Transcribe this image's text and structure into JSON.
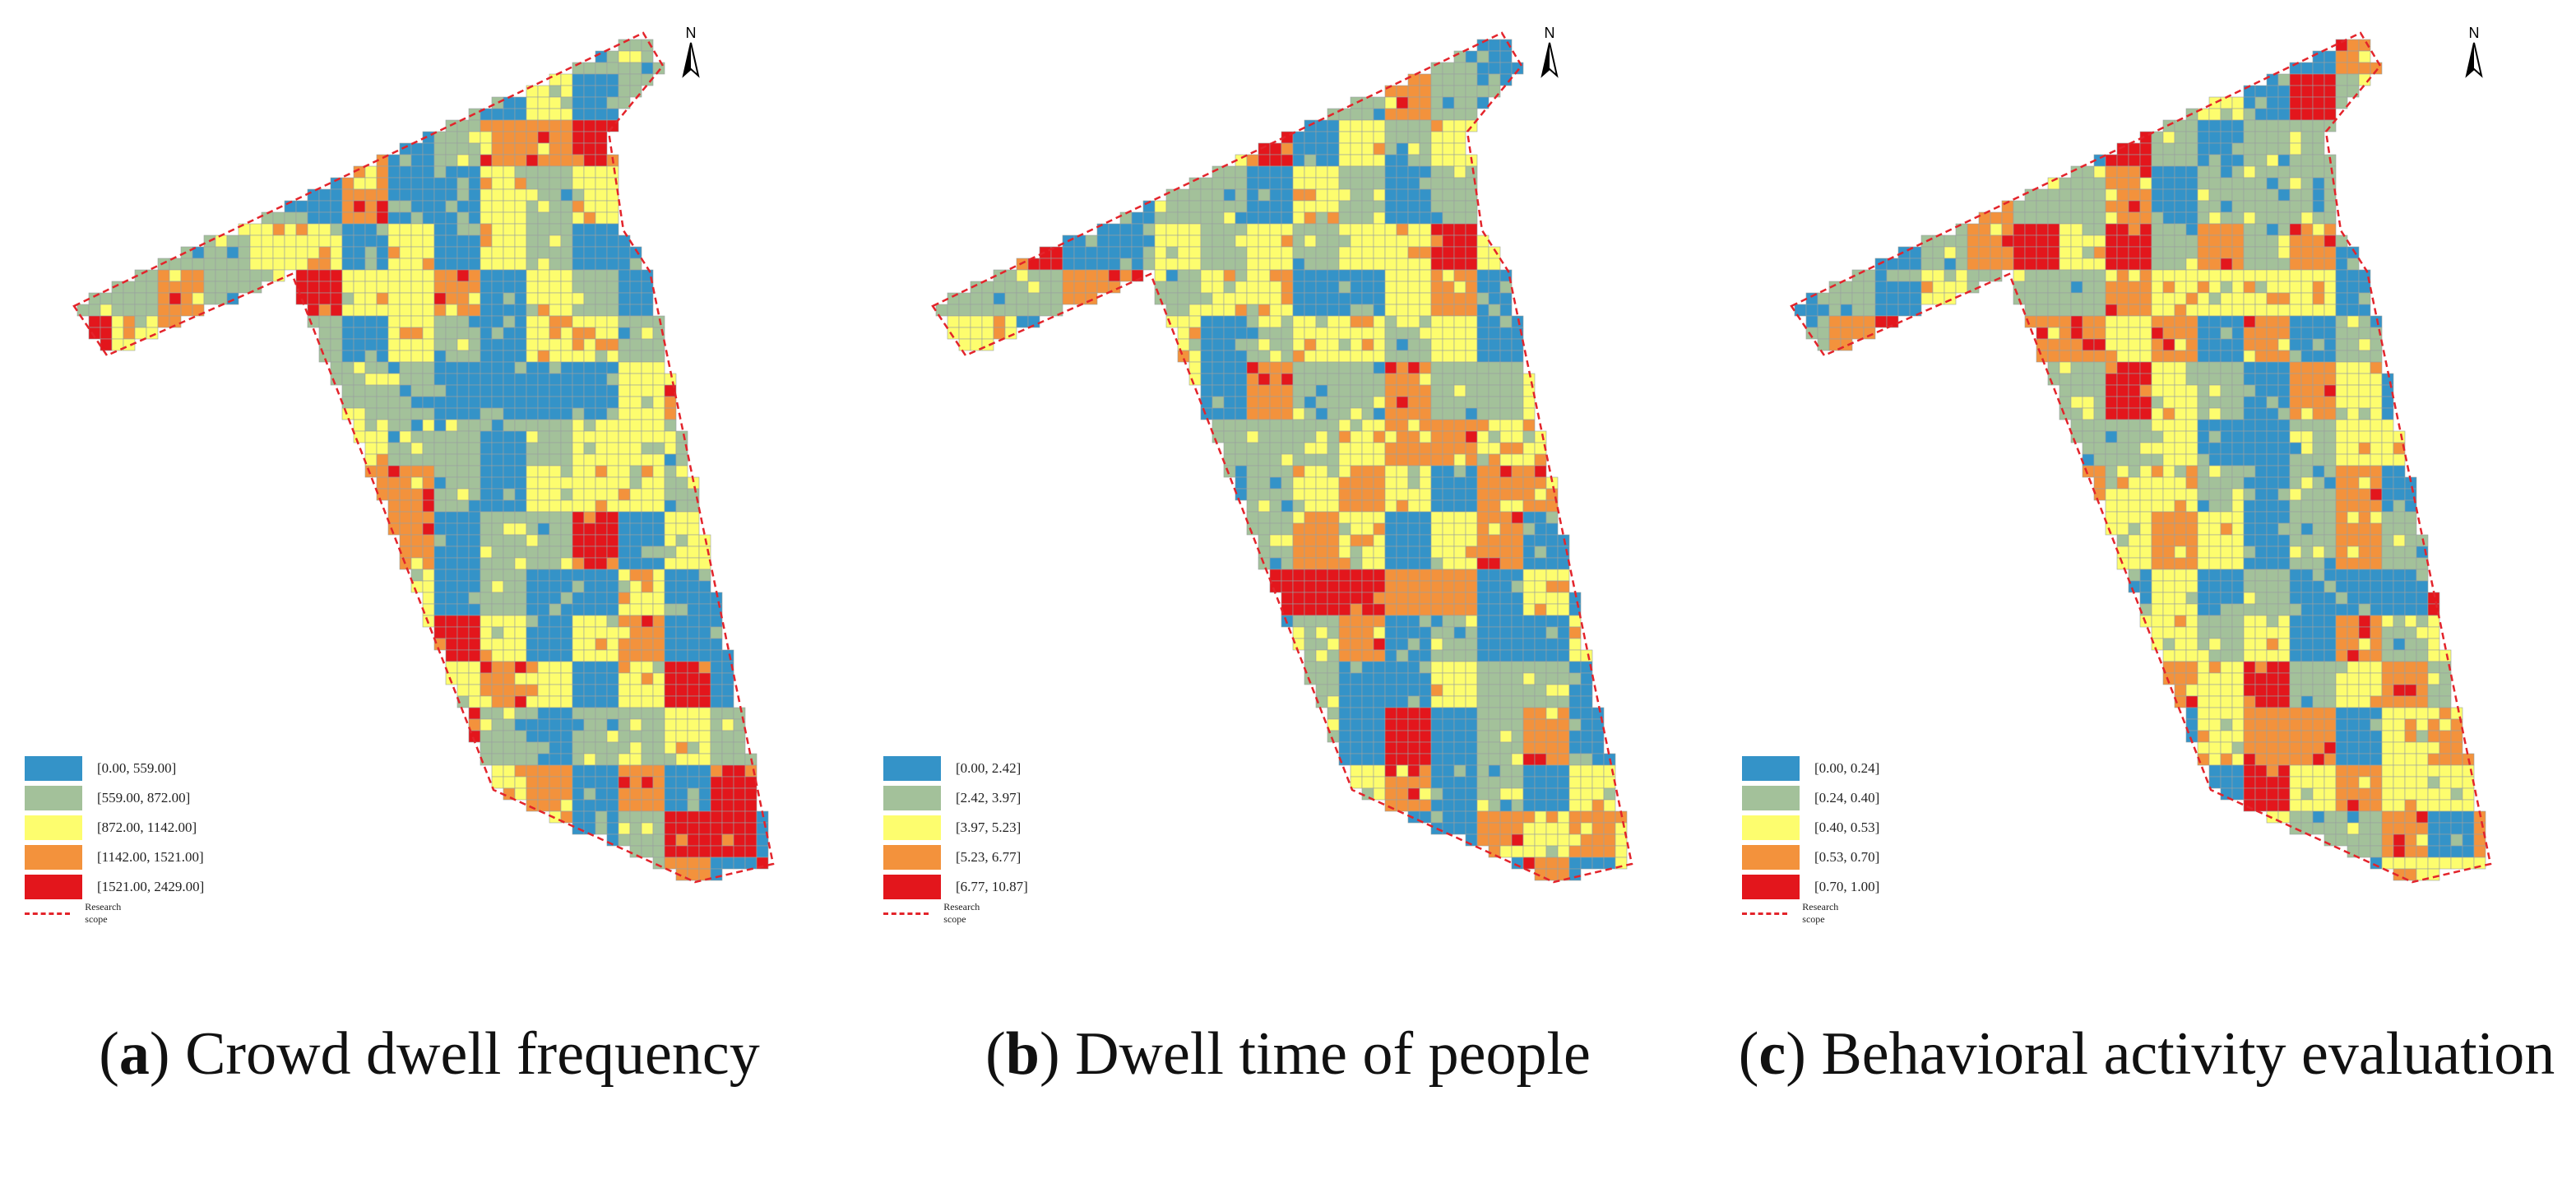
{
  "colors": {
    "class1": "#3493c8",
    "class2": "#a3c19a",
    "class3": "#fdfd6e",
    "class4": "#f3923c",
    "class5": "#e3161c",
    "grid_line": "#9aa0a0",
    "boundary": "#e3242b"
  },
  "north_arrow": {
    "letter": "N",
    "icon": "north-arrow-icon"
  },
  "panels": [
    {
      "caption_letter": "a",
      "caption_title": "Crowd dwell frequency",
      "legend": [
        "[0.00, 559.00]",
        "[559.00, 872.00]",
        "[872.00, 1142.00]",
        "[1142.00, 1521.00]",
        "[1521.00, 2429.00]"
      ],
      "scope_label": "Research scope"
    },
    {
      "caption_letter": "b",
      "caption_title": "Dwell time of people",
      "legend": [
        "[0.00, 2.42]",
        "[2.42, 3.97]",
        "[3.97, 5.23]",
        "[5.23, 6.77]",
        "[6.77, 10.87]"
      ],
      "scope_label": "Research scope"
    },
    {
      "caption_letter": "c",
      "caption_title": "Behavioral activity evaluation",
      "legend": [
        "[0.00, 0.24]",
        "[0.24, 0.40]",
        "[0.40, 0.53]",
        "[0.53, 0.70]",
        "[0.70, 1.00]"
      ],
      "scope_label": "Research scope"
    }
  ]
}
